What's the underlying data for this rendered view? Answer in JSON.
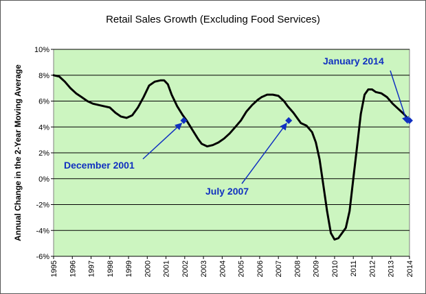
{
  "chart_data": {
    "type": "line",
    "title": "Retail Sales Growth (Excluding Food Services)",
    "ylabel": "Annual Change in the 2-Year Moving Average",
    "xlabel": "",
    "xlim": [
      1995,
      2014
    ],
    "ylim": [
      -6,
      10
    ],
    "x_ticks": [
      "1995",
      "1996",
      "1997",
      "1998",
      "1999",
      "2000",
      "2001",
      "2002",
      "2003",
      "2004",
      "2005",
      "2006",
      "2007",
      "2008",
      "2009",
      "2010",
      "2011",
      "2012",
      "2013",
      "2014"
    ],
    "y_ticks": [
      "10%",
      "8%",
      "6%",
      "4%",
      "2%",
      "0%",
      "-2%",
      "-4%",
      "-6%"
    ],
    "grid": "horizontal",
    "colors": {
      "plot_background": "#ccf5c0",
      "line": "#000000",
      "marker": "#1030c0",
      "annotation": "#1030c0"
    },
    "series": [
      {
        "x": [
          1995.0,
          1995.3,
          1995.6,
          1995.9,
          1996.2,
          1996.5,
          1996.8,
          1997.1,
          1997.4,
          1997.7,
          1998.0,
          1998.3,
          1998.6,
          1998.9,
          1999.2,
          1999.5,
          1999.8,
          2000.1,
          2000.4,
          2000.7,
          2000.9,
          2001.1,
          2001.3,
          2001.6,
          2001.9,
          2002.1,
          2002.4,
          2002.7,
          2002.9,
          2003.2,
          2003.5,
          2003.8,
          2004.1,
          2004.4,
          2004.7,
          2005.0,
          2005.3,
          2005.6,
          2005.9,
          2006.1,
          2006.4,
          2006.7,
          2007.0,
          2007.3,
          2007.5,
          2007.8,
          2008.0,
          2008.2,
          2008.5,
          2008.8,
          2009.0,
          2009.2,
          2009.4,
          2009.6,
          2009.8,
          2010.0,
          2010.2,
          2010.4,
          2010.6,
          2010.8,
          2011.0,
          2011.2,
          2011.4,
          2011.6,
          2011.8,
          2012.0,
          2012.2,
          2012.5,
          2012.8,
          2013.1,
          2013.4,
          2013.7,
          2014.0
        ],
        "y": [
          8.0,
          7.9,
          7.5,
          7.0,
          6.6,
          6.3,
          6.0,
          5.8,
          5.7,
          5.6,
          5.5,
          5.1,
          4.8,
          4.7,
          4.9,
          5.5,
          6.3,
          7.2,
          7.5,
          7.6,
          7.6,
          7.3,
          6.5,
          5.6,
          4.9,
          4.5,
          3.8,
          3.1,
          2.7,
          2.5,
          2.6,
          2.8,
          3.1,
          3.5,
          4.0,
          4.5,
          5.2,
          5.7,
          6.1,
          6.3,
          6.5,
          6.5,
          6.4,
          6.0,
          5.6,
          5.1,
          4.7,
          4.3,
          4.1,
          3.6,
          2.8,
          1.5,
          -0.5,
          -2.5,
          -4.2,
          -4.7,
          -4.6,
          -4.2,
          -3.8,
          -2.5,
          0.0,
          2.5,
          5.0,
          6.5,
          6.9,
          6.9,
          6.7,
          6.6,
          6.3,
          5.8,
          5.4,
          5.0,
          4.5
        ]
      }
    ],
    "markers": [
      {
        "label": "December 2001",
        "x": 2001.95,
        "y": 4.5
      },
      {
        "label": "July 2007",
        "x": 2007.55,
        "y": 4.5
      },
      {
        "label": "January 2014",
        "x": 2014.0,
        "y": 4.5
      }
    ]
  }
}
